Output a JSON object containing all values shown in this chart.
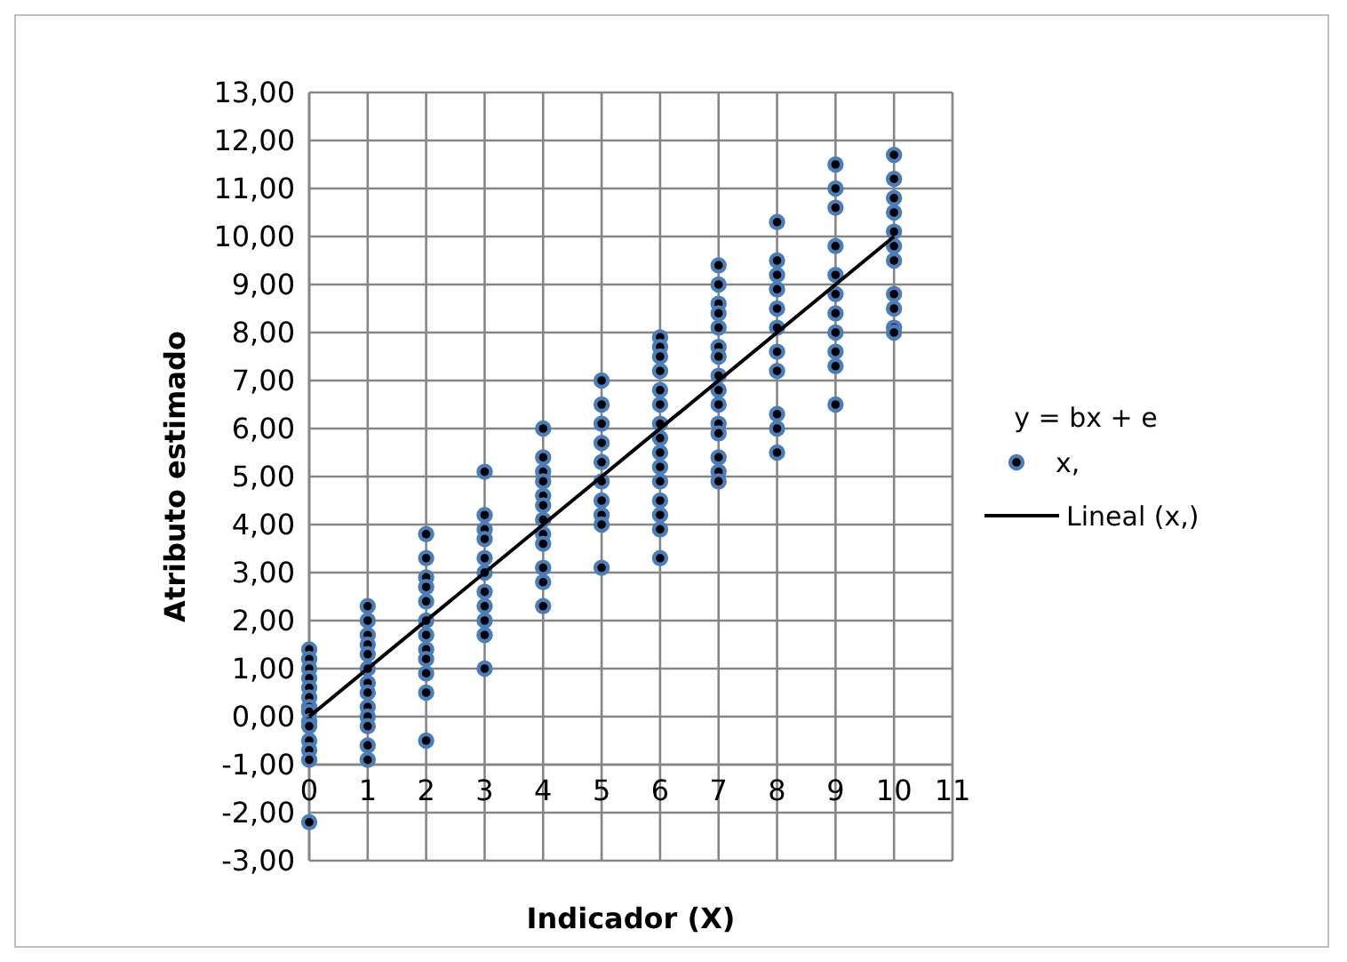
{
  "chart_data": {
    "type": "scatter",
    "xlabel": "Indicador (X)",
    "ylabel": "Atributo estimado",
    "legend_title": "y = bx + e",
    "legend": "right",
    "grid": true,
    "marker": "circle",
    "xlim": [
      0,
      11
    ],
    "xticks": [
      0,
      1,
      2,
      3,
      4,
      5,
      6,
      7,
      8,
      9,
      10,
      11
    ],
    "ylim": [
      -3,
      13
    ],
    "yticks": [
      {
        "value": -3,
        "label": "-3,00"
      },
      {
        "value": -2,
        "label": "-2,00"
      },
      {
        "value": -1,
        "label": "-1,00"
      },
      {
        "value": 0,
        "label": "0,00"
      },
      {
        "value": 1,
        "label": "1,00"
      },
      {
        "value": 2,
        "label": "2,00"
      },
      {
        "value": 3,
        "label": "3,00"
      },
      {
        "value": 4,
        "label": "4,00"
      },
      {
        "value": 5,
        "label": "5,00"
      },
      {
        "value": 6,
        "label": "6,00"
      },
      {
        "value": 7,
        "label": "7,00"
      },
      {
        "value": 8,
        "label": "8,00"
      },
      {
        "value": 9,
        "label": "9,00"
      },
      {
        "value": 10,
        "label": "10,00"
      },
      {
        "value": 11,
        "label": "11,00"
      },
      {
        "value": 12,
        "label": "12,00"
      },
      {
        "value": 13,
        "label": "13,00"
      }
    ],
    "series": [
      {
        "name": "x,",
        "color": "#4a7ebb",
        "x": [
          0,
          0,
          0,
          0,
          0,
          0,
          0,
          0,
          0,
          0,
          0,
          0,
          0,
          0,
          1,
          1,
          1,
          1,
          1,
          1,
          1,
          1,
          1,
          1,
          1,
          1,
          1,
          2,
          2,
          2,
          2,
          2,
          2,
          2,
          2,
          2,
          2,
          2,
          2,
          3,
          3,
          3,
          3,
          3,
          3,
          3,
          3,
          3,
          3,
          3,
          4,
          4,
          4,
          4,
          4,
          4,
          4,
          4,
          4,
          4,
          4,
          4,
          5,
          5,
          5,
          5,
          5,
          5,
          5,
          5,
          5,
          5,
          6,
          6,
          6,
          6,
          6,
          6,
          6,
          6,
          6,
          6,
          6,
          6,
          6,
          6,
          6,
          7,
          7,
          7,
          7,
          7,
          7,
          7,
          7,
          7,
          7,
          7,
          7,
          7,
          7,
          7,
          8,
          8,
          8,
          8,
          8,
          8,
          8,
          8,
          8,
          8,
          8,
          9,
          9,
          9,
          9,
          9,
          9,
          9,
          9,
          9,
          9,
          9,
          10,
          10,
          10,
          10,
          10,
          10,
          10,
          10,
          10,
          10,
          10
        ],
        "values": [
          1.4,
          1.2,
          1.0,
          0.8,
          0.6,
          0.4,
          0.2,
          0.1,
          -0.1,
          -0.2,
          -0.5,
          -0.7,
          -0.9,
          -2.2,
          2.3,
          2.0,
          1.7,
          1.5,
          1.3,
          1.0,
          0.7,
          0.5,
          0.2,
          0.0,
          -0.2,
          -0.6,
          -0.9,
          3.8,
          3.3,
          2.9,
          2.7,
          2.4,
          2.0,
          1.7,
          1.4,
          1.2,
          0.9,
          0.5,
          -0.5,
          5.1,
          4.2,
          3.9,
          3.7,
          3.3,
          3.0,
          2.6,
          2.3,
          2.0,
          1.7,
          1.0,
          6.0,
          5.4,
          5.1,
          4.9,
          4.6,
          4.4,
          4.1,
          3.8,
          3.6,
          3.1,
          2.8,
          2.3,
          7.0,
          6.5,
          6.1,
          5.7,
          5.3,
          4.9,
          4.5,
          4.2,
          4.0,
          3.1,
          7.9,
          7.7,
          7.5,
          7.2,
          6.8,
          6.5,
          6.1,
          5.8,
          5.5,
          5.2,
          4.9,
          4.5,
          4.2,
          3.9,
          3.3,
          9.4,
          9.0,
          8.6,
          8.4,
          8.1,
          7.7,
          7.5,
          7.1,
          6.8,
          6.5,
          6.1,
          5.9,
          5.4,
          5.1,
          4.9,
          10.3,
          9.5,
          9.2,
          8.9,
          8.5,
          8.1,
          7.6,
          7.2,
          6.3,
          6.0,
          5.5,
          11.5,
          11.0,
          10.6,
          9.8,
          9.2,
          8.8,
          8.4,
          8.0,
          7.6,
          7.3,
          6.5,
          11.7,
          11.2,
          10.8,
          10.5,
          10.1,
          9.8,
          9.5,
          8.8,
          8.5,
          8.1,
          8.0
        ]
      },
      {
        "name": "Lineal (x,)",
        "type": "line",
        "color": "#000000",
        "marker": "none",
        "line_style": "solid",
        "x": [
          0,
          10
        ],
        "values": [
          0,
          10
        ]
      }
    ]
  }
}
